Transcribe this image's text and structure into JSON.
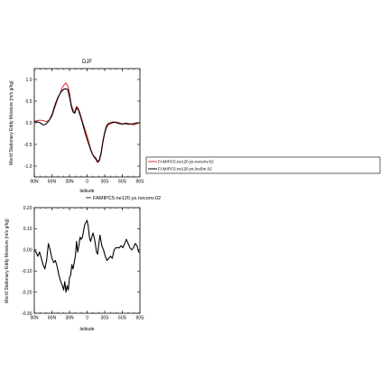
{
  "chart_data": [
    {
      "type": "line",
      "title": "DJF",
      "xlabel": "latitude",
      "ylabel": "Merid Stationary Eddy Moisture (m/s g/kg)",
      "xlim": [
        90,
        -90
      ],
      "ylim": [
        -1.25,
        1.25
      ],
      "xticks": [
        90,
        60,
        30,
        0,
        -30,
        -60,
        -90
      ],
      "xtick_labels": [
        "90N",
        "60N",
        "30N",
        "0",
        "30S",
        "60S",
        "90S"
      ],
      "yticks": [
        -1.0,
        -0.5,
        0.0,
        0.5,
        1.0
      ],
      "ytick_labels": [
        "-1.0",
        "-0.5",
        "0.0",
        "0.5",
        "1.0"
      ],
      "legend": {
        "placement": "right",
        "entries": [
          {
            "label": "FAMIPC5.ne120.ys.noconv.02",
            "color": "#e23a3a"
          },
          {
            "label": "FAMIPC5.ne120.ys.lou5m.02",
            "color": "#000000"
          }
        ]
      },
      "series": [
        {
          "name": "FAMIPC5.ne120.ys.noconv.02",
          "color": "#e23a3a",
          "x": [
            90,
            85,
            80,
            75,
            70,
            65,
            60,
            55,
            50,
            45,
            42,
            39,
            36,
            33,
            30,
            27,
            24,
            21,
            18,
            15,
            12,
            9,
            6,
            3,
            0,
            -3,
            -6,
            -9,
            -12,
            -15,
            -18,
            -21,
            -24,
            -27,
            -30,
            -33,
            -36,
            -40,
            -45,
            -50,
            -55,
            -60,
            -65,
            -70,
            -75,
            -80,
            -85,
            -90
          ],
          "y": [
            0.03,
            0.05,
            0.06,
            0.05,
            0.03,
            0.05,
            0.15,
            0.35,
            0.55,
            0.72,
            0.82,
            0.88,
            0.92,
            0.85,
            0.7,
            0.42,
            0.3,
            0.25,
            0.38,
            0.33,
            0.22,
            0.08,
            -0.05,
            -0.18,
            -0.3,
            -0.45,
            -0.6,
            -0.72,
            -0.8,
            -0.85,
            -0.92,
            -0.88,
            -0.72,
            -0.45,
            -0.25,
            -0.12,
            -0.05,
            -0.02,
            0.0,
            0.02,
            0.0,
            -0.03,
            -0.02,
            -0.04,
            -0.03,
            -0.05,
            -0.02,
            0.0
          ]
        },
        {
          "name": "FAMIPC5.ne120.ys.lou5m.02",
          "color": "#000000",
          "x": [
            90,
            85,
            80,
            75,
            70,
            65,
            60,
            55,
            50,
            45,
            42,
            39,
            36,
            33,
            30,
            27,
            24,
            21,
            18,
            15,
            12,
            9,
            6,
            3,
            0,
            -3,
            -6,
            -9,
            -12,
            -15,
            -18,
            -21,
            -24,
            -27,
            -30,
            -33,
            -36,
            -40,
            -45,
            -50,
            -55,
            -60,
            -65,
            -70,
            -75,
            -80,
            -85,
            -90
          ],
          "y": [
            0.03,
            0.02,
            0.0,
            -0.05,
            -0.03,
            0.05,
            0.18,
            0.4,
            0.58,
            0.7,
            0.75,
            0.78,
            0.78,
            0.77,
            0.6,
            0.38,
            0.25,
            0.22,
            0.35,
            0.3,
            0.18,
            0.05,
            -0.1,
            -0.25,
            -0.38,
            -0.5,
            -0.62,
            -0.72,
            -0.78,
            -0.82,
            -0.9,
            -0.85,
            -0.68,
            -0.42,
            -0.22,
            -0.08,
            -0.02,
            0.0,
            0.02,
            0.0,
            -0.02,
            -0.03,
            -0.01,
            -0.02,
            -0.03,
            -0.02,
            0.0,
            0.0
          ]
        }
      ]
    },
    {
      "type": "line",
      "title": "",
      "xlabel": "latitude",
      "ylabel": "Merid Stationary Eddy Moisture (m/s g/kg)",
      "xlim": [
        90,
        -90
      ],
      "ylim": [
        -0.3,
        0.2
      ],
      "xticks": [
        90,
        60,
        30,
        0,
        -30,
        -60,
        -90
      ],
      "xtick_labels": [
        "90N",
        "60N",
        "30N",
        "0",
        "30S",
        "60S",
        "90S"
      ],
      "yticks": [
        -0.3,
        -0.2,
        -0.1,
        0.0,
        0.1,
        0.2
      ],
      "ytick_labels": [
        "-0.30",
        "-0.20",
        "-0.10",
        "0.00",
        "0.10",
        "0.20"
      ],
      "legend": {
        "placement": "top",
        "entries": [
          {
            "label": "FAMIPC5.ne120.ys.noconv.02",
            "color": "#000000"
          }
        ]
      },
      "series": [
        {
          "name": "FAMIPC5.ne120.ys.noconv.02",
          "color": "#000000",
          "x": [
            90,
            87,
            84,
            81,
            78,
            75,
            72,
            69,
            66,
            63,
            60,
            57,
            54,
            51,
            48,
            45,
            42,
            40,
            38,
            36,
            34,
            32,
            30,
            28,
            26,
            24,
            22,
            20,
            18,
            16,
            14,
            12,
            10,
            8,
            6,
            4,
            2,
            0,
            -2,
            -4,
            -6,
            -8,
            -10,
            -12,
            -14,
            -16,
            -18,
            -20,
            -22,
            -25,
            -28,
            -31,
            -34,
            -37,
            -40,
            -43,
            -46,
            -49,
            -52,
            -55,
            -58,
            -61,
            -64,
            -67,
            -70,
            -73,
            -76,
            -79,
            -82,
            -85,
            -88,
            -90
          ],
          "y": [
            0.0,
            -0.01,
            -0.03,
            -0.01,
            -0.04,
            -0.07,
            -0.09,
            -0.05,
            0.03,
            0.0,
            -0.04,
            -0.06,
            -0.05,
            -0.08,
            -0.12,
            -0.15,
            -0.17,
            -0.19,
            -0.15,
            -0.2,
            -0.17,
            -0.19,
            -0.13,
            -0.12,
            -0.07,
            -0.09,
            -0.06,
            -0.03,
            0.04,
            -0.01,
            0.02,
            0.06,
            0.05,
            0.06,
            0.09,
            0.12,
            0.13,
            0.14,
            0.11,
            0.06,
            0.04,
            0.06,
            0.08,
            0.06,
            0.03,
            -0.01,
            -0.02,
            0.03,
            0.07,
            0.02,
            0.0,
            -0.03,
            -0.05,
            -0.04,
            -0.03,
            -0.04,
            0.0,
            0.01,
            0.01,
            0.01,
            0.02,
            0.01,
            0.03,
            0.05,
            0.03,
            0.01,
            0.0,
            0.01,
            0.03,
            0.02,
            -0.01,
            -0.01
          ]
        }
      ]
    }
  ]
}
